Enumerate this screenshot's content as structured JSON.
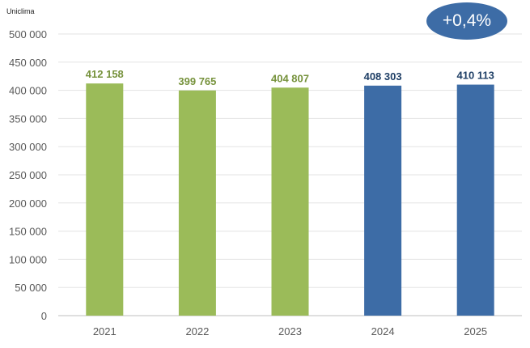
{
  "source_label": "Uniclima",
  "badge": {
    "text": "+0,4%",
    "color": "#3d6ca6"
  },
  "chart_data": {
    "type": "bar",
    "title": "",
    "xlabel": "",
    "ylabel": "",
    "categories": [
      "2021",
      "2022",
      "2023",
      "2024",
      "2025"
    ],
    "values": [
      412158,
      399765,
      404807,
      408303,
      410113
    ],
    "value_labels": [
      "412 158",
      "399 765",
      "404 807",
      "408 303",
      "410 113"
    ],
    "bar_colors": [
      "#9bbb59",
      "#9bbb59",
      "#9bbb59",
      "#3d6ca6",
      "#3d6ca6"
    ],
    "ylim": [
      0,
      500000
    ],
    "yticks": [
      0,
      50000,
      100000,
      150000,
      200000,
      250000,
      300000,
      350000,
      400000,
      450000,
      500000
    ],
    "ytick_labels": [
      "0",
      "50 000",
      "100 000",
      "150 000",
      "200 000",
      "250 000",
      "300 000",
      "350 000",
      "400 000",
      "450 000",
      "500 000"
    ],
    "grid": true,
    "legend": "none"
  }
}
